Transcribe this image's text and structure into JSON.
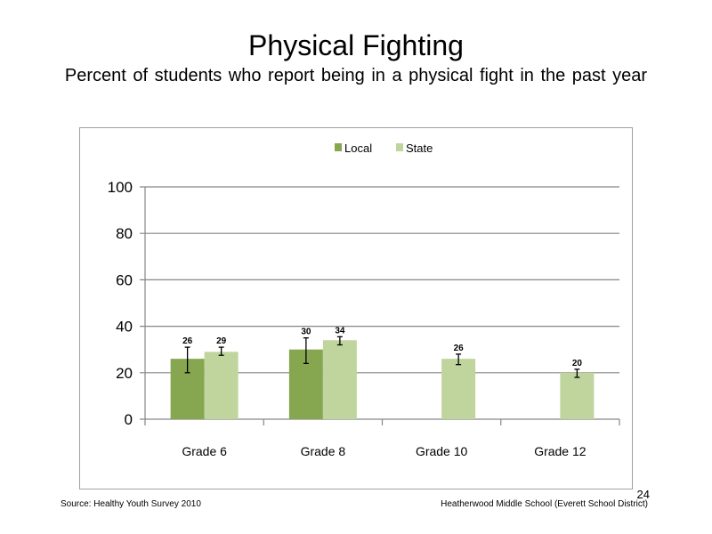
{
  "slide": {
    "title": "Physical Fighting",
    "subtitle": "Percent of students who report being in a physical fight in the past year",
    "source": "Source: Healthy Youth Survey 2010",
    "school": "Heatherwood Middle  School (Everett School District)",
    "page_number": "24"
  },
  "chart_data": {
    "type": "bar",
    "title": "",
    "xlabel": "",
    "ylabel": "",
    "ylim": [
      0,
      100
    ],
    "yticks": [
      0,
      20,
      40,
      60,
      80,
      100
    ],
    "grid": true,
    "legend_position": "top-center",
    "categories": [
      "Grade 6",
      "Grade 8",
      "Grade 10",
      "Grade 12"
    ],
    "series": [
      {
        "name": "Local",
        "color": "#86a650",
        "values": [
          26,
          30,
          null,
          null
        ],
        "error": [
          [
            20,
            31
          ],
          [
            24,
            35
          ],
          null,
          null
        ]
      },
      {
        "name": "State",
        "color": "#bfd59d",
        "values": [
          29,
          34,
          26,
          20
        ],
        "error": [
          [
            27.5,
            31
          ],
          [
            32,
            35.5
          ],
          [
            23.5,
            28
          ],
          [
            18,
            21.5
          ]
        ]
      }
    ]
  }
}
